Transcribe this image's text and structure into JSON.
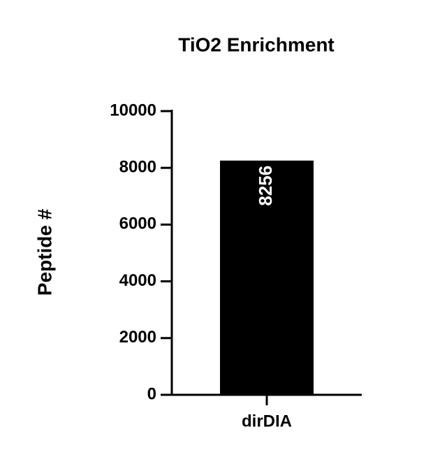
{
  "chart_data": {
    "type": "bar",
    "title": "TiO2 Enrichment",
    "y_label": "Peptide #",
    "categories": [
      "dirDIA"
    ],
    "values": [
      8256
    ],
    "color": "#000000",
    "ylim": [
      0,
      10000
    ],
    "yticks": [
      0,
      2000,
      4000,
      6000,
      8000,
      10000
    ],
    "grid": false
  }
}
